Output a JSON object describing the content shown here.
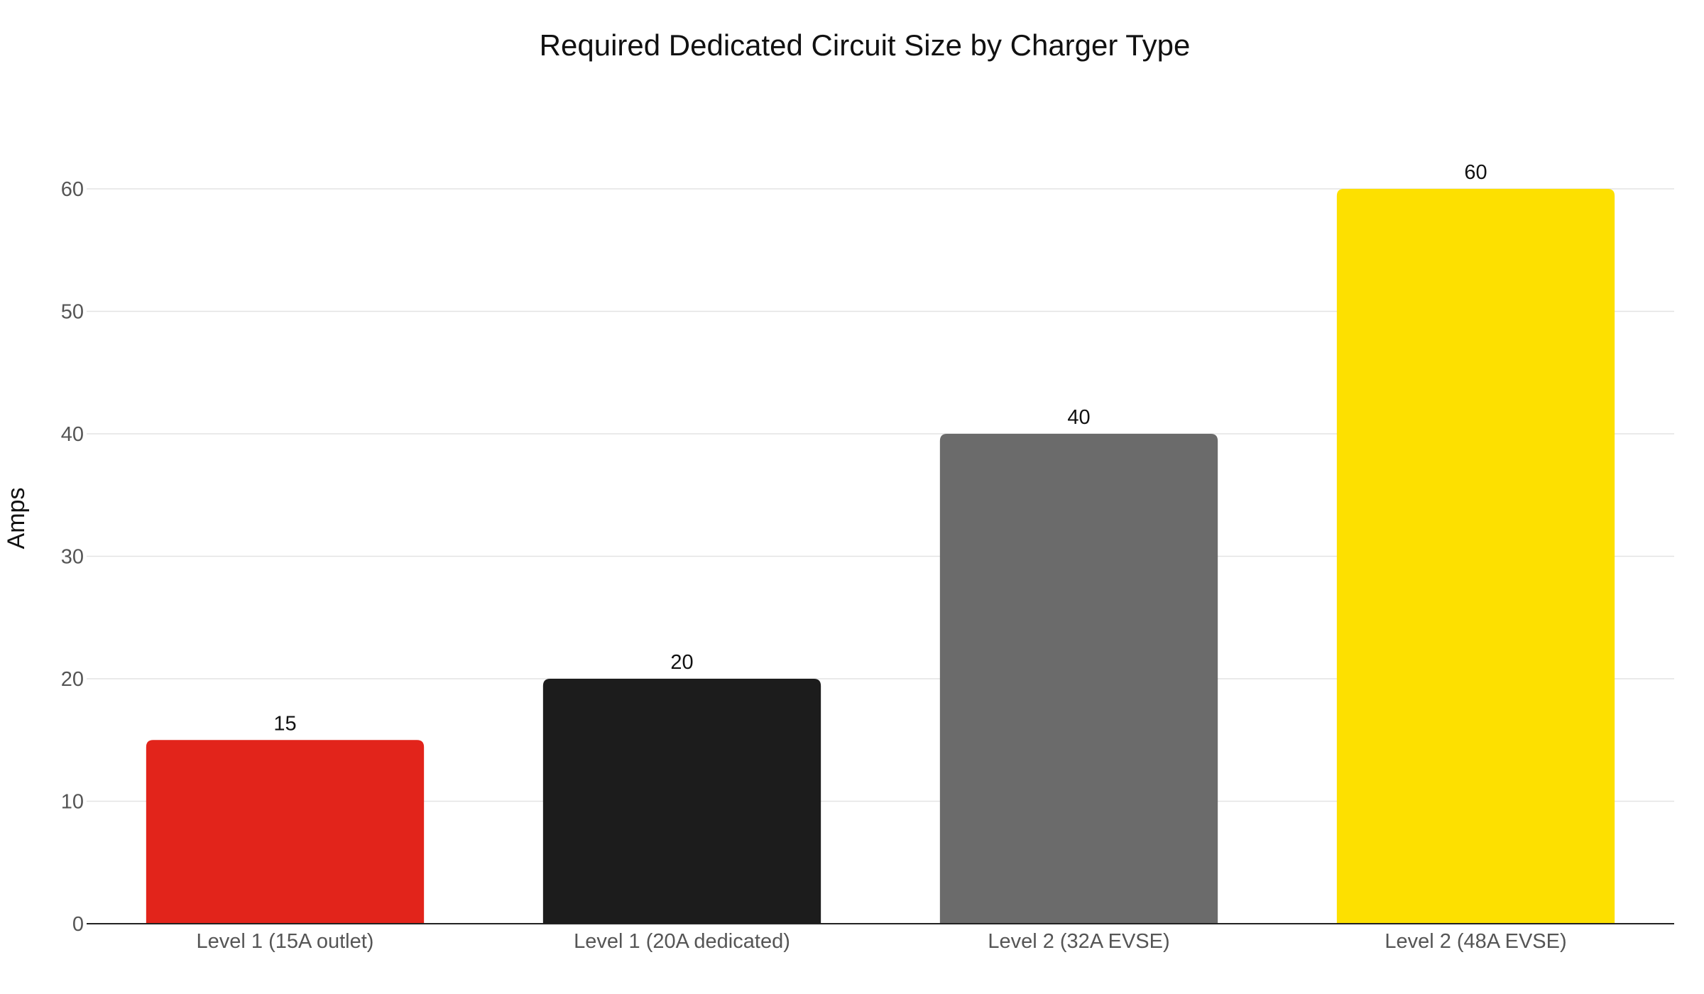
{
  "chart_data": {
    "type": "bar",
    "title": "Required Dedicated Circuit Size by Charger Type",
    "xlabel": "",
    "ylabel": "Amps",
    "categories": [
      "Level 1 (15A outlet)",
      "Level 1 (20A dedicated)",
      "Level 2 (32A EVSE)",
      "Level 2 (48A EVSE)"
    ],
    "values": [
      15,
      20,
      40,
      60
    ],
    "value_labels": [
      "15",
      "20",
      "40",
      "60"
    ],
    "colors": [
      "#e2241b",
      "#1c1c1c",
      "#6b6b6b",
      "#fde000"
    ],
    "ylim": [
      0,
      60
    ],
    "yticks": [
      0,
      10,
      20,
      30,
      40,
      50,
      60
    ],
    "ytick_labels": [
      "0",
      "10",
      "20",
      "30",
      "40",
      "50",
      "60"
    ],
    "grid": true,
    "legend": "none"
  }
}
